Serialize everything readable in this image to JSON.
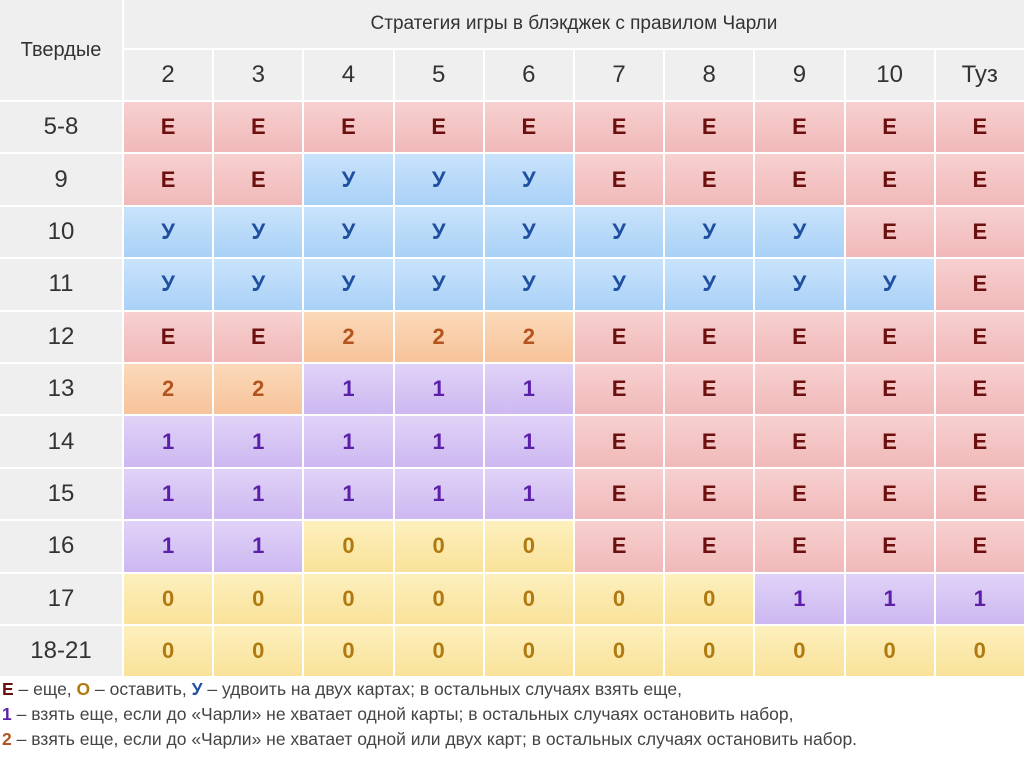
{
  "table": {
    "corner": "Твердые",
    "title": "Стратегия игры в блэкджек с правилом Чарли",
    "columns": [
      "2",
      "3",
      "4",
      "5",
      "6",
      "7",
      "8",
      "9",
      "10",
      "Туз"
    ],
    "rows": [
      {
        "label": "5-8",
        "cells": [
          "Е",
          "Е",
          "Е",
          "Е",
          "Е",
          "Е",
          "Е",
          "Е",
          "Е",
          "Е"
        ]
      },
      {
        "label": "9",
        "cells": [
          "Е",
          "Е",
          "У",
          "У",
          "У",
          "Е",
          "Е",
          "Е",
          "Е",
          "Е"
        ]
      },
      {
        "label": "10",
        "cells": [
          "У",
          "У",
          "У",
          "У",
          "У",
          "У",
          "У",
          "У",
          "Е",
          "Е"
        ]
      },
      {
        "label": "11",
        "cells": [
          "У",
          "У",
          "У",
          "У",
          "У",
          "У",
          "У",
          "У",
          "У",
          "Е"
        ]
      },
      {
        "label": "12",
        "cells": [
          "Е",
          "Е",
          "2",
          "2",
          "2",
          "Е",
          "Е",
          "Е",
          "Е",
          "Е"
        ]
      },
      {
        "label": "13",
        "cells": [
          "2",
          "2",
          "1",
          "1",
          "1",
          "Е",
          "Е",
          "Е",
          "Е",
          "Е"
        ]
      },
      {
        "label": "14",
        "cells": [
          "1",
          "1",
          "1",
          "1",
          "1",
          "Е",
          "Е",
          "Е",
          "Е",
          "Е"
        ]
      },
      {
        "label": "15",
        "cells": [
          "1",
          "1",
          "1",
          "1",
          "1",
          "Е",
          "Е",
          "Е",
          "Е",
          "Е"
        ]
      },
      {
        "label": "16",
        "cells": [
          "1",
          "1",
          "0",
          "0",
          "0",
          "Е",
          "Е",
          "Е",
          "Е",
          "Е"
        ]
      },
      {
        "label": "17",
        "cells": [
          "0",
          "0",
          "0",
          "0",
          "0",
          "0",
          "0",
          "1",
          "1",
          "1"
        ]
      },
      {
        "label": "18-21",
        "cells": [
          "0",
          "0",
          "0",
          "0",
          "0",
          "0",
          "0",
          "0",
          "0",
          "0"
        ]
      }
    ]
  },
  "colors": {
    "Е": "#6b0f0f",
    "У": "#1f4fa0",
    "2": "#b3541e",
    "1": "#5b1fa8",
    "0": "#b07a10"
  },
  "legend": [
    {
      "parts": [
        {
          "key": "Е",
          "text": " – еще, "
        },
        {
          "key": "О",
          "text": " – оставить, "
        },
        {
          "key": "У",
          "text": " – удвоить на двух картах; в остальных случаях взять еще,"
        }
      ]
    },
    {
      "parts": [
        {
          "key": "1",
          "text": " – взять еще, если до «Чарли» не хватает одной карты; в остальных случаях остановить набор,"
        }
      ]
    },
    {
      "parts": [
        {
          "key": "2",
          "text": " – взять еще, если до «Чарли» не хватает одной или двух карт; в остальных случаях остановить набор."
        }
      ]
    }
  ]
}
